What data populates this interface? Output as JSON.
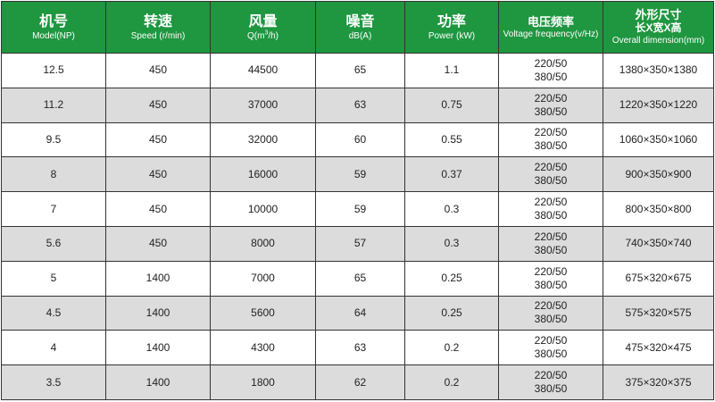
{
  "headers": [
    {
      "zh": "机号",
      "en": "Model(NP)"
    },
    {
      "zh": "转速",
      "en": "Speed (r/min)"
    },
    {
      "zh": "风量",
      "en_pre": "Q(m",
      "en_sup": "3",
      "en_post": "/h)"
    },
    {
      "zh": "噪音",
      "en": "dB(A)"
    },
    {
      "zh": "功率",
      "en": "Power (kW)"
    },
    {
      "zh": "电压频率",
      "en": "Voltage frequency(v/Hz)"
    },
    {
      "zh": "外形尺寸",
      "zh2": "长X宽X高",
      "en": "Overall dimension(mm)"
    }
  ],
  "rows": [
    {
      "model": "12.5",
      "speed": "450",
      "airflow": "44500",
      "noise": "65",
      "power": "1.1",
      "voltage": [
        "220/50",
        "380/50"
      ],
      "dimension": "1380×350×1380"
    },
    {
      "model": "11.2",
      "speed": "450",
      "airflow": "37000",
      "noise": "63",
      "power": "0.75",
      "voltage": [
        "220/50",
        "380/50"
      ],
      "dimension": "1220×350×1220"
    },
    {
      "model": "9.5",
      "speed": "450",
      "airflow": "32000",
      "noise": "60",
      "power": "0.55",
      "voltage": [
        "220/50",
        "380/50"
      ],
      "dimension": "1060×350×1060"
    },
    {
      "model": "8",
      "speed": "450",
      "airflow": "16000",
      "noise": "59",
      "power": "0.37",
      "voltage": [
        "220/50",
        "380/50"
      ],
      "dimension": "900×350×900"
    },
    {
      "model": "7",
      "speed": "450",
      "airflow": "10000",
      "noise": "59",
      "power": "0.3",
      "voltage": [
        "220/50",
        "380/50"
      ],
      "dimension": "800×350×800"
    },
    {
      "model": "5.6",
      "speed": "450",
      "airflow": "8000",
      "noise": "57",
      "power": "0.3",
      "voltage": [
        "220/50",
        "380/50"
      ],
      "dimension": "740×350×740"
    },
    {
      "model": "5",
      "speed": "1400",
      "airflow": "7000",
      "noise": "65",
      "power": "0.25",
      "voltage": [
        "220/50",
        "380/50"
      ],
      "dimension": "675×320×675"
    },
    {
      "model": "4.5",
      "speed": "1400",
      "airflow": "5600",
      "noise": "64",
      "power": "0.25",
      "voltage": [
        "220/50",
        "380/50"
      ],
      "dimension": "575×320×575"
    },
    {
      "model": "4",
      "speed": "1400",
      "airflow": "4300",
      "noise": "63",
      "power": "0.2",
      "voltage": [
        "220/50",
        "380/50"
      ],
      "dimension": "475×320×475"
    },
    {
      "model": "3.5",
      "speed": "1400",
      "airflow": "1800",
      "noise": "62",
      "power": "0.2",
      "voltage": [
        "220/50",
        "380/50"
      ],
      "dimension": "375×320×375"
    }
  ]
}
